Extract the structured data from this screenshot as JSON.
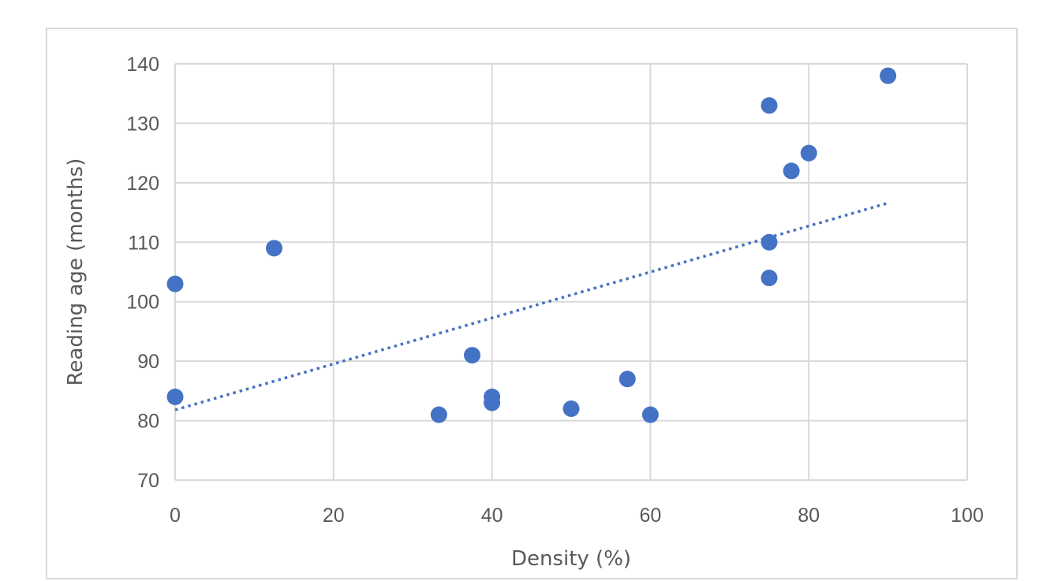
{
  "chart_data": {
    "type": "scatter",
    "title": "",
    "xlabel": "Density (%)",
    "ylabel": "Reading age (months)",
    "xlim": [
      0,
      100
    ],
    "ylim": [
      70,
      140
    ],
    "x_ticks": [
      0,
      20,
      40,
      60,
      80,
      100
    ],
    "y_ticks": [
      70,
      80,
      90,
      100,
      110,
      120,
      130,
      140
    ],
    "grid": true,
    "legend": "none",
    "colors": {
      "marker": "#4472c4",
      "trendline": "#4472c4",
      "grid": "#d9d9d9",
      "text": "#595959"
    },
    "series": [
      {
        "points": [
          {
            "x": 0,
            "y": 103
          },
          {
            "x": 0,
            "y": 84
          },
          {
            "x": 12.5,
            "y": 109
          },
          {
            "x": 33.3,
            "y": 81
          },
          {
            "x": 37.5,
            "y": 91
          },
          {
            "x": 40,
            "y": 84
          },
          {
            "x": 40,
            "y": 83
          },
          {
            "x": 50,
            "y": 82
          },
          {
            "x": 57.1,
            "y": 87
          },
          {
            "x": 60,
            "y": 81
          },
          {
            "x": 75,
            "y": 133
          },
          {
            "x": 75,
            "y": 110
          },
          {
            "x": 75,
            "y": 104
          },
          {
            "x": 77.8,
            "y": 122
          },
          {
            "x": 80,
            "y": 125
          },
          {
            "x": 90,
            "y": 138
          }
        ]
      }
    ],
    "trendline": {
      "type": "linear",
      "style": "dotted",
      "from": {
        "x": 0,
        "y": 81.8
      },
      "to": {
        "x": 90,
        "y": 116.6
      }
    }
  }
}
